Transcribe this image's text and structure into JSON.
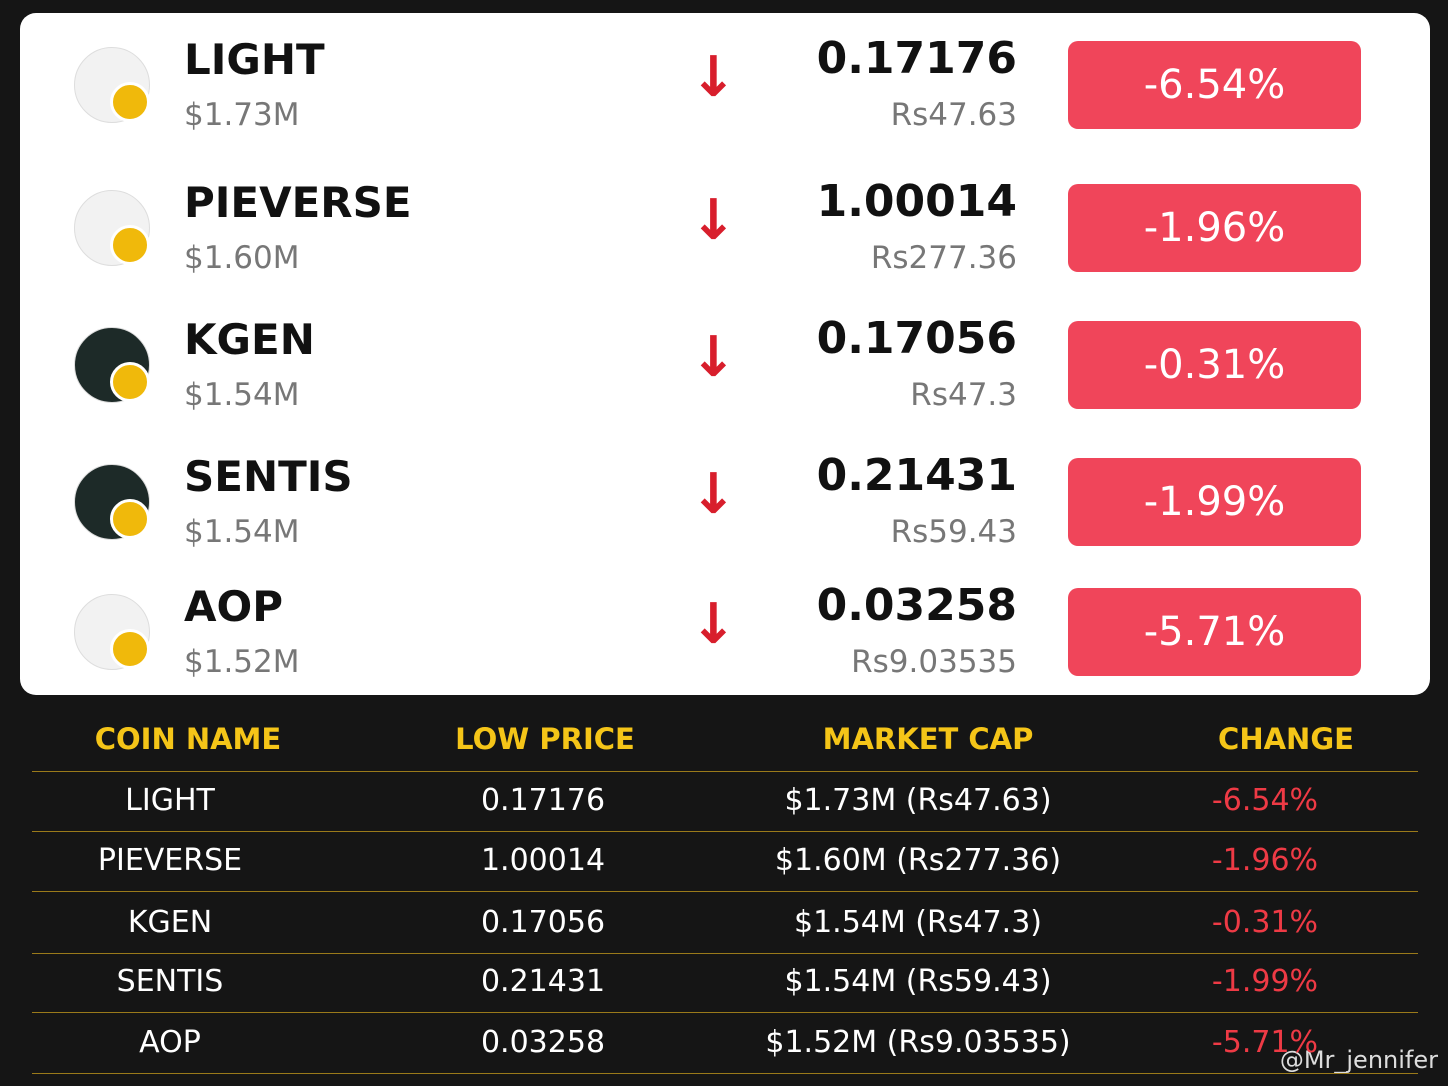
{
  "coins": [
    {
      "name": "LIGHT",
      "market_cap": "$1.73M",
      "price": "0.17176",
      "price_rs": "Rs47.63",
      "change": "-6.54%"
    },
    {
      "name": "PIEVERSE",
      "market_cap": "$1.60M",
      "price": "1.00014",
      "price_rs": "Rs277.36",
      "change": "-1.96%"
    },
    {
      "name": "KGEN",
      "market_cap": "$1.54M",
      "price": "0.17056",
      "price_rs": "Rs47.3",
      "change": "-0.31%"
    },
    {
      "name": "SENTIS",
      "market_cap": "$1.54M",
      "price": "0.21431",
      "price_rs": "Rs59.43",
      "change": "-1.99%"
    },
    {
      "name": "AOP",
      "market_cap": "$1.52M",
      "price": "0.03258",
      "price_rs": "Rs9.03535",
      "change": "-5.71%"
    }
  ],
  "table": {
    "headers": [
      "COIN NAME",
      "LOW PRICE",
      "MARKET CAP",
      "CHANGE"
    ],
    "rows": [
      [
        "LIGHT",
        "0.17176",
        "$1.73M (Rs47.63)",
        "-6.54%"
      ],
      [
        "PIEVERSE",
        "1.00014",
        "$1.60M (Rs277.36)",
        "-1.96%"
      ],
      [
        "KGEN",
        "0.17056",
        "$1.54M (Rs47.3)",
        "-0.31%"
      ],
      [
        "SENTIS",
        "0.21431",
        "$1.54M (Rs59.43)",
        "-1.99%"
      ],
      [
        "AOP",
        "0.03258",
        "$1.52M (Rs9.03535)",
        "-5.71%"
      ]
    ]
  },
  "watermark": "@Mr_jennifer"
}
